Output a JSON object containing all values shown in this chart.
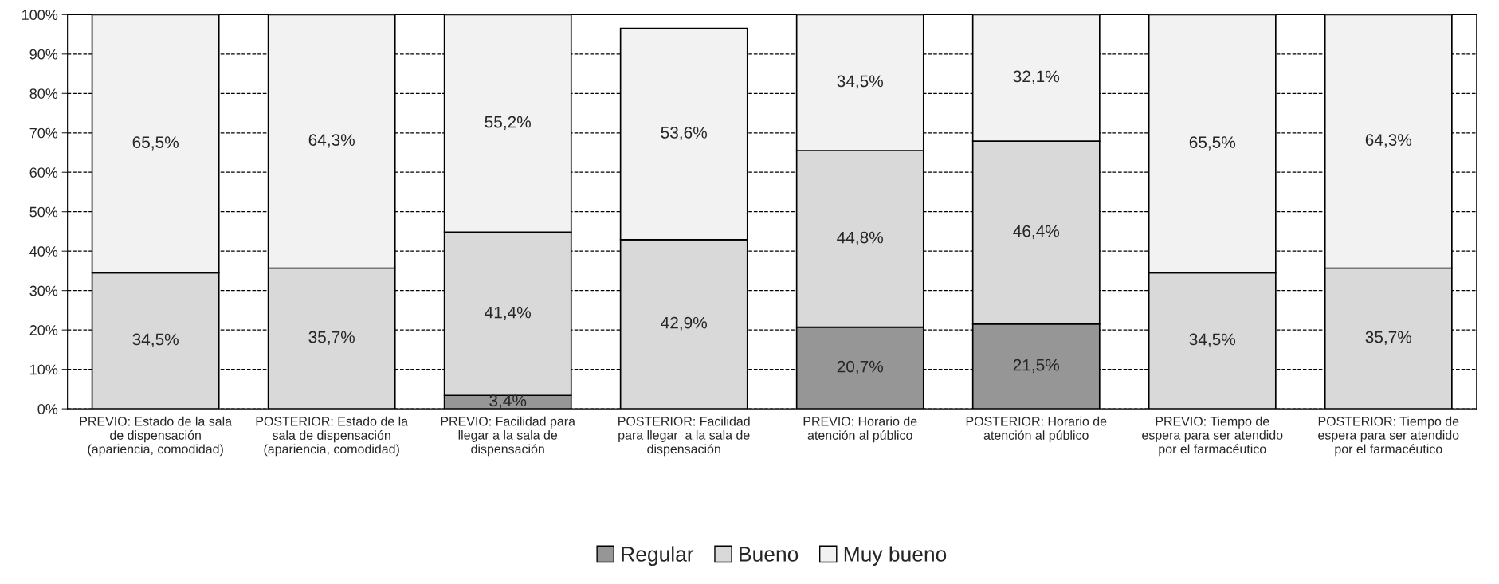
{
  "chart_data": {
    "type": "bar",
    "stacked": true,
    "categories": [
      "PREVIO: Estado de la sala\nde dispensación\n(apariencia, comodidad)",
      "POSTERIOR: Estado de la\nsala de dispensación\n(apariencia, comodidad)",
      "PREVIO: Facilidad para\nllegar a la sala de\ndispensación",
      "POSTERIOR: Facilidad\npara llegar  a la sala de\ndispensación",
      "PREVIO: Horario de\natención al público",
      "POSTERIOR: Horario de\natención al público",
      "PREVIO: Tiempo de\nespera para ser atendido\npor el farmacéutico",
      "POSTERIOR: Tiempo de\nespera para ser atendido\npor el farmacéutico"
    ],
    "series": [
      {
        "name": "Regular",
        "color": "#969696",
        "values": [
          0,
          0,
          3.4,
          0,
          20.7,
          21.5,
          0,
          0
        ],
        "value_labels": [
          null,
          null,
          "3,4%",
          null,
          "20,7%",
          "21,5%",
          null,
          null
        ]
      },
      {
        "name": "Bueno",
        "color": "#d9d9d9",
        "values": [
          34.5,
          35.7,
          41.4,
          42.9,
          44.8,
          46.4,
          34.5,
          35.7
        ],
        "value_labels": [
          "34,5%",
          "35,7%",
          "41,4%",
          "42,9%",
          "44,8%",
          "46,4%",
          "34,5%",
          "35,7%"
        ]
      },
      {
        "name": "Muy bueno",
        "color": "#f2f2f2",
        "values": [
          65.5,
          64.3,
          55.2,
          53.6,
          34.5,
          32.1,
          65.5,
          64.3
        ],
        "value_labels": [
          "65,5%",
          "64,3%",
          "55,2%",
          "53,6%",
          "34,5%",
          "32,1%",
          "65,5%",
          "64,3%"
        ]
      }
    ],
    "ylim": [
      0,
      100
    ],
    "yticks": [
      {
        "value": 0,
        "label": "0%"
      },
      {
        "value": 10,
        "label": "10%"
      },
      {
        "value": 20,
        "label": "20%"
      },
      {
        "value": 30,
        "label": "30%"
      },
      {
        "value": 40,
        "label": "40%"
      },
      {
        "value": 50,
        "label": "50%"
      },
      {
        "value": 60,
        "label": "60%"
      },
      {
        "value": 70,
        "label": "70%"
      },
      {
        "value": 80,
        "label": "80%"
      },
      {
        "value": 90,
        "label": "90%"
      },
      {
        "value": 100,
        "label": "100%"
      }
    ],
    "grid": "y",
    "legend": "bottom"
  }
}
